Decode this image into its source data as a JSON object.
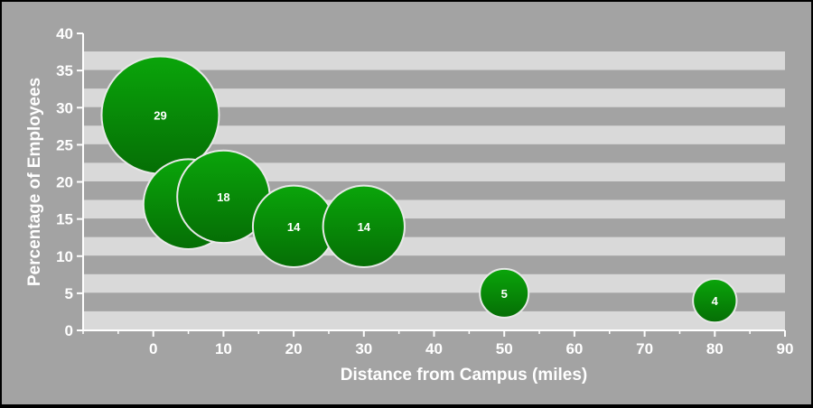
{
  "chart_data": {
    "type": "scatter",
    "subtype": "bubble",
    "title": "",
    "xlabel": "Distance from Campus (miles)",
    "ylabel": "Percentage of Employees",
    "xlim": [
      -10,
      90
    ],
    "ylim": [
      0,
      40
    ],
    "xticks": [
      0,
      10,
      20,
      30,
      40,
      50,
      60,
      70,
      80,
      90
    ],
    "yticks": [
      0,
      5,
      10,
      15,
      20,
      25,
      30,
      35,
      40
    ],
    "grid": "horizontal bands",
    "legend": "none",
    "series": [
      {
        "points": [
          {
            "x": 1,
            "y": 29,
            "size": 29,
            "label": "29"
          },
          {
            "x": 5,
            "y": 17,
            "size": 17,
            "label": "17"
          },
          {
            "x": 10,
            "y": 18,
            "size": 18,
            "label": "18"
          },
          {
            "x": 20,
            "y": 14,
            "size": 14,
            "label": "14"
          },
          {
            "x": 30,
            "y": 14,
            "size": 14,
            "label": "14"
          },
          {
            "x": 50,
            "y": 5,
            "size": 5,
            "label": "5"
          },
          {
            "x": 80,
            "y": 4,
            "size": 4,
            "label": "4"
          }
        ]
      }
    ],
    "colors": {
      "background": "#a3a3a3",
      "band_light": "#d9d9d9",
      "band_dark": "#a3a3a3",
      "bubble_top": "#0aa50a",
      "bubble_bottom": "#056e05",
      "bubble_stroke": "#e8e8e8",
      "text": "#ffffff"
    }
  }
}
